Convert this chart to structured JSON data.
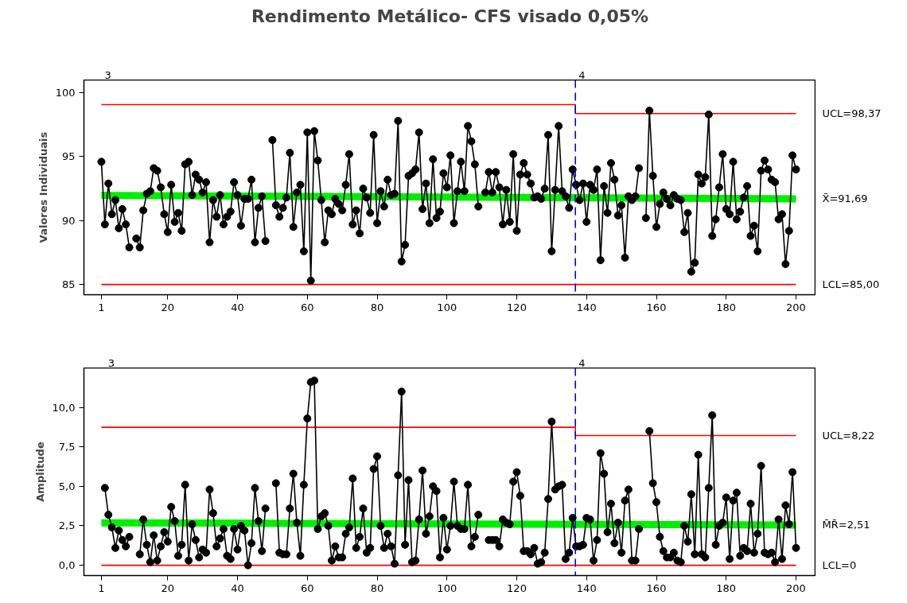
{
  "chart_data": [
    {
      "type": "line",
      "title": "Rendimento Metálico- CFS visado 0,05%",
      "ylabel": "Valores Individuais",
      "x": [
        1,
        2,
        3,
        4,
        5,
        6,
        7,
        8,
        9,
        10,
        11,
        12,
        13,
        14,
        15,
        16,
        17,
        18,
        19,
        20,
        21,
        22,
        23,
        24,
        25,
        26,
        27,
        28,
        29,
        30,
        31,
        32,
        33,
        34,
        35,
        36,
        37,
        38,
        39,
        40,
        41,
        42,
        43,
        44,
        45,
        46,
        47,
        48,
        49,
        50,
        51,
        52,
        53,
        54,
        55,
        56,
        57,
        58,
        59,
        60,
        61,
        62,
        63,
        64,
        65,
        66,
        67,
        68,
        69,
        70,
        71,
        72,
        73,
        74,
        75,
        76,
        77,
        78,
        79,
        80,
        81,
        82,
        83,
        84,
        85,
        86,
        87,
        88,
        89,
        90,
        91,
        92,
        93,
        94,
        95,
        96,
        97,
        98,
        99,
        100,
        101,
        102,
        103,
        104,
        105,
        106,
        107,
        108,
        109,
        110,
        111,
        112,
        113,
        114,
        115,
        116,
        117,
        118,
        119,
        120,
        121,
        122,
        123,
        124,
        125,
        126,
        127,
        128,
        129,
        130,
        131,
        132,
        133,
        134,
        135,
        136,
        137,
        138,
        139,
        140,
        141,
        142,
        143,
        144,
        145,
        146,
        147,
        148,
        149,
        150,
        151,
        152,
        153,
        154,
        155,
        156,
        157,
        158,
        159,
        160,
        161,
        162,
        163,
        164,
        165,
        166,
        167,
        168,
        169,
        170,
        171,
        172,
        173,
        174,
        175,
        176,
        177,
        178,
        179,
        180,
        181,
        182,
        183,
        184,
        185,
        186,
        187,
        188,
        189,
        190,
        191,
        192,
        193,
        194,
        195,
        196,
        197,
        198,
        199,
        200
      ],
      "series": [
        {
          "name": "X̄=91,69",
          "color": "#00ee00",
          "x": [
            1,
            200
          ],
          "values": [
            91.97,
            91.7
          ],
          "marker": "none"
        },
        {
          "name": "UCL=98,37",
          "color": "#ff0000",
          "x": [
            1,
            136.8,
            136.8,
            200
          ],
          "values": [
            99.07,
            99.07,
            98.37,
            98.37
          ],
          "marker": "none"
        },
        {
          "name": "LCL=85,00",
          "color": "#ff0000",
          "x": [
            1,
            200
          ],
          "values": [
            85.0,
            85.0
          ],
          "marker": "none"
        },
        {
          "color": "#000000",
          "values": [
            94.6,
            89.7,
            92.9,
            90.5,
            91.6,
            89.4,
            90.9,
            89.7,
            87.9,
            null,
            88.6,
            87.9,
            90.8,
            92.1,
            92.3,
            94.1,
            93.9,
            92.6,
            90.5,
            89.1,
            92.8,
            89.9,
            90.6,
            89.2,
            94.4,
            94.6,
            92.0,
            93.6,
            93.2,
            92.2,
            93.0,
            88.3,
            91.6,
            90.3,
            92.0,
            89.7,
            90.3,
            90.7,
            93.0,
            92.0,
            89.6,
            91.7,
            91.7,
            93.2,
            88.3,
            91.0,
            91.9,
            88.4,
            null,
            96.3,
            91.2,
            90.3,
            91.0,
            91.8,
            95.3,
            89.5,
            92.2,
            92.8,
            87.6,
            96.9,
            85.3,
            97.0,
            94.7,
            91.6,
            88.3,
            90.8,
            90.5,
            91.7,
            91.3,
            90.8,
            92.8,
            95.2,
            89.7,
            90.8,
            89.0,
            92.5,
            91.8,
            90.6,
            96.7,
            89.8,
            92.3,
            91.1,
            93.2,
            92.0,
            92.1,
            97.8,
            86.8,
            88.1,
            93.5,
            93.7,
            94.0,
            96.9,
            90.9,
            92.9,
            89.8,
            94.8,
            90.2,
            90.7,
            93.7,
            92.6,
            95.1,
            89.8,
            92.3,
            94.6,
            92.3,
            97.4,
            96.2,
            94.4,
            91.1,
            null,
            92.2,
            93.8,
            92.2,
            93.8,
            92.6,
            89.7,
            92.4,
            89.9,
            95.2,
            89.2,
            93.6,
            94.5,
            93.6,
            92.9,
            91.8,
            91.9,
            91.7,
            92.5,
            96.7,
            87.6,
            92.4,
            97.4,
            92.3,
            91.9,
            91.0,
            94.0,
            92.8,
            91.6,
            92.9,
            89.9,
            92.8,
            92.4,
            94.0,
            86.9,
            92.7,
            90.6,
            94.5,
            93.2,
            90.4,
            91.2,
            87.1,
            91.9,
            91.6,
            91.9,
            94.1,
            null,
            90.2,
            98.6,
            93.5,
            89.5,
            91.3,
            92.2,
            91.7,
            91.2,
            92.0,
            91.7,
            91.6,
            89.1,
            90.6,
            86.0,
            86.7,
            93.6,
            92.9,
            93.4,
            98.3,
            88.8,
            90.1,
            92.6,
            95.2,
            90.9,
            90.5,
            94.6,
            90.1,
            90.7,
            91.8,
            92.7,
            88.8,
            89.6,
            87.6,
            93.9,
            94.7,
            94.0,
            93.2,
            93.0,
            90.1,
            90.5,
            86.6,
            89.2,
            95.1,
            94.0
          ]
        }
      ],
      "marker": "circle",
      "grid": false,
      "xlim": [
        -4,
        205.7
      ],
      "ylim": [
        84.2,
        101.0
      ],
      "xticks": [
        1,
        20,
        40,
        60,
        80,
        100,
        120,
        140,
        160,
        180,
        200
      ],
      "yticks": [
        85,
        90,
        95,
        100
      ],
      "ref_lines": [
        {
          "axis": "x",
          "value": 136.8,
          "color": "#0000ff",
          "line_style": "dashed"
        }
      ],
      "annotations": [
        "3",
        "4"
      ]
    },
    {
      "type": "line",
      "ylabel": "Amplitude",
      "x": [
        2,
        3,
        4,
        5,
        6,
        7,
        8,
        9,
        10,
        11,
        12,
        13,
        14,
        15,
        16,
        17,
        18,
        19,
        20,
        21,
        22,
        23,
        24,
        25,
        26,
        27,
        28,
        29,
        30,
        31,
        32,
        33,
        34,
        35,
        36,
        37,
        38,
        39,
        40,
        41,
        42,
        43,
        44,
        45,
        46,
        47,
        48,
        49,
        50,
        51,
        52,
        53,
        54,
        55,
        56,
        57,
        58,
        59,
        60,
        61,
        62,
        63,
        64,
        65,
        66,
        67,
        68,
        69,
        70,
        71,
        72,
        73,
        74,
        75,
        76,
        77,
        78,
        79,
        80,
        81,
        82,
        83,
        84,
        85,
        86,
        87,
        88,
        89,
        90,
        91,
        92,
        93,
        94,
        95,
        96,
        97,
        98,
        99,
        100,
        101,
        102,
        103,
        104,
        105,
        106,
        107,
        108,
        109,
        110,
        111,
        112,
        113,
        114,
        115,
        116,
        117,
        118,
        119,
        120,
        121,
        122,
        123,
        124,
        125,
        126,
        127,
        128,
        129,
        130,
        131,
        132,
        133,
        134,
        135,
        136,
        137,
        138,
        139,
        140,
        141,
        142,
        143,
        144,
        145,
        146,
        147,
        148,
        149,
        150,
        151,
        152,
        153,
        154,
        155,
        156,
        157,
        158,
        159,
        160,
        161,
        162,
        163,
        164,
        165,
        166,
        167,
        168,
        169,
        170,
        171,
        172,
        173,
        174,
        175,
        176,
        177,
        178,
        179,
        180,
        181,
        182,
        183,
        184,
        185,
        186,
        187,
        188,
        189,
        190,
        191,
        192,
        193,
        194,
        195,
        196,
        197,
        198,
        199,
        200
      ],
      "series": [
        {
          "name": "M̄R̄=2,51",
          "color": "#00ee00",
          "x": [
            1,
            200
          ],
          "values": [
            2.69,
            2.55
          ],
          "marker": "none"
        },
        {
          "name": "UCL=8,22",
          "color": "#ff0000",
          "x": [
            1,
            136.8,
            136.8,
            200
          ],
          "values": [
            8.74,
            8.74,
            8.22,
            8.22
          ],
          "marker": "none"
        },
        {
          "name": "LCL=0",
          "color": "#ff0000",
          "x": [
            1,
            200
          ],
          "values": [
            0.0,
            0.0
          ],
          "marker": "none"
        },
        {
          "color": "#000000",
          "values": [
            4.9,
            3.2,
            2.4,
            1.1,
            2.2,
            1.6,
            1.2,
            1.8,
            null,
            null,
            0.7,
            2.9,
            1.3,
            0.2,
            1.9,
            0.3,
            1.2,
            2.1,
            1.5,
            3.7,
            2.8,
            0.6,
            1.3,
            5.1,
            0.3,
            2.6,
            1.6,
            0.5,
            1.0,
            0.8,
            4.8,
            3.3,
            1.2,
            1.7,
            2.3,
            0.6,
            0.4,
            2.3,
            1.0,
            2.5,
            2.2,
            0.0,
            1.4,
            4.9,
            2.8,
            0.9,
            3.6,
            null,
            null,
            5.2,
            0.8,
            0.7,
            0.7,
            3.6,
            5.8,
            2.7,
            0.6,
            5.1,
            9.3,
            11.6,
            11.7,
            2.3,
            3.1,
            3.3,
            2.5,
            0.3,
            1.2,
            0.5,
            0.5,
            2.0,
            2.4,
            5.5,
            1.1,
            1.8,
            3.6,
            0.8,
            1.1,
            6.1,
            6.9,
            2.5,
            1.1,
            2.0,
            1.2,
            0.1,
            5.7,
            11.0,
            1.3,
            5.4,
            0.2,
            0.3,
            2.9,
            6.0,
            2.0,
            3.1,
            5.0,
            4.7,
            0.5,
            3.0,
            1.0,
            2.5,
            5.3,
            2.5,
            2.3,
            2.3,
            5.1,
            1.2,
            1.8,
            3.2,
            null,
            null,
            1.6,
            1.6,
            1.6,
            1.2,
            2.9,
            2.7,
            2.6,
            5.3,
            5.9,
            4.4,
            0.9,
            0.9,
            0.7,
            1.1,
            0.1,
            0.2,
            0.8,
            4.2,
            9.1,
            4.8,
            5.0,
            5.1,
            0.4,
            0.8,
            3.0,
            1.2,
            1.2,
            1.3,
            3.0,
            2.9,
            0.3,
            1.6,
            7.1,
            5.8,
            2.1,
            3.9,
            1.4,
            2.7,
            0.8,
            4.1,
            4.8,
            0.3,
            0.3,
            2.3,
            null,
            null,
            8.5,
            5.2,
            4.0,
            1.8,
            0.9,
            0.5,
            0.5,
            0.8,
            0.3,
            0.2,
            2.5,
            1.5,
            4.5,
            0.7,
            7.0,
            0.7,
            0.5,
            4.9,
            9.5,
            1.3,
            2.5,
            2.7,
            4.3,
            0.4,
            4.1,
            4.6,
            0.6,
            1.1,
            0.9,
            3.9,
            0.8,
            2.0,
            6.3,
            0.8,
            0.7,
            0.8,
            0.2,
            2.9,
            0.4,
            3.8,
            2.6,
            5.9,
            1.1
          ]
        }
      ],
      "marker": "circle",
      "grid": false,
      "xlim": [
        -4,
        205.7
      ],
      "ylim": [
        -0.65,
        12.5
      ],
      "xticks": [
        1,
        20,
        40,
        60,
        80,
        100,
        120,
        140,
        160,
        180,
        200
      ],
      "yticks": [
        {
          "value": 0,
          "label": "0,0"
        },
        {
          "value": 2.5,
          "label": "2,5"
        },
        {
          "value": 5,
          "label": "5,0"
        },
        {
          "value": 7.5,
          "label": "7,5"
        },
        {
          "value": 10,
          "label": "10,0"
        }
      ],
      "ref_lines": [
        {
          "axis": "x",
          "value": 136.8,
          "color": "#0000ff",
          "line_style": "dashed"
        }
      ],
      "annotations": [
        "3",
        "4"
      ]
    }
  ]
}
